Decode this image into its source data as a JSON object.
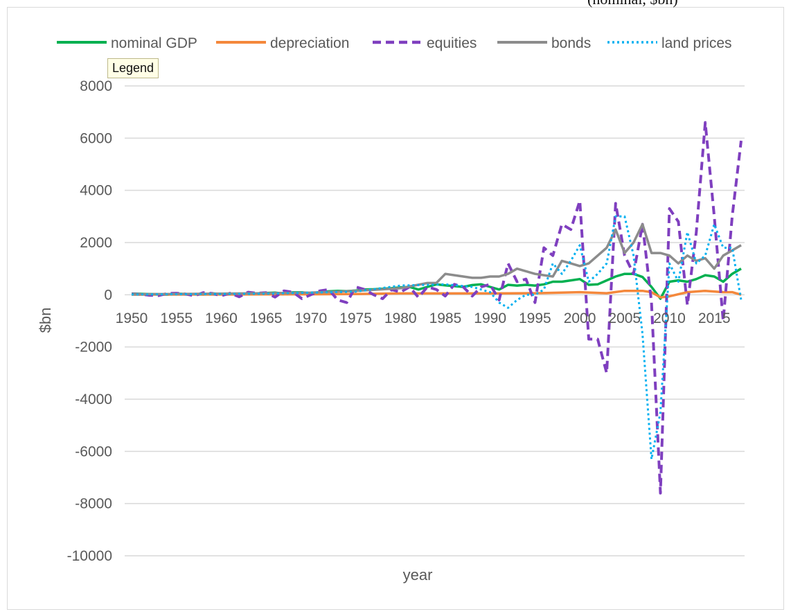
{
  "top_caption": "(nominal, $bn)",
  "tooltip": "Legend",
  "chart_data": {
    "type": "line",
    "title": "",
    "xlabel": "year",
    "ylabel": "$bn",
    "ylim": [
      -10000,
      8000
    ],
    "yticks": [
      8000,
      6000,
      4000,
      2000,
      0,
      -2000,
      -4000,
      -6000,
      -8000,
      -10000
    ],
    "xlim": [
      1950,
      2018
    ],
    "xticks": [
      1950,
      1955,
      1960,
      1965,
      1970,
      1975,
      1980,
      1985,
      1990,
      1995,
      2000,
      2005,
      2010,
      2015
    ],
    "grid": "horizontal",
    "legend_position": "top",
    "series": [
      {
        "name": "nominal GDP",
        "color": "#00b050",
        "dash": "solid",
        "x": [
          1950,
          1951,
          1952,
          1953,
          1954,
          1955,
          1956,
          1957,
          1958,
          1959,
          1960,
          1961,
          1962,
          1963,
          1964,
          1965,
          1966,
          1967,
          1968,
          1969,
          1970,
          1971,
          1972,
          1973,
          1974,
          1975,
          1976,
          1977,
          1978,
          1979,
          1980,
          1981,
          1982,
          1983,
          1984,
          1985,
          1986,
          1987,
          1988,
          1989,
          1990,
          1991,
          1992,
          1993,
          1994,
          1995,
          1996,
          1997,
          1998,
          1999,
          2000,
          2001,
          2002,
          2003,
          2004,
          2005,
          2006,
          2007,
          2008,
          2009,
          2010,
          2011,
          2012,
          2013,
          2014,
          2015,
          2016,
          2017,
          2018
        ],
        "values": [
          40,
          35,
          25,
          20,
          5,
          40,
          30,
          30,
          10,
          50,
          25,
          25,
          40,
          40,
          50,
          70,
          80,
          45,
          90,
          90,
          60,
          100,
          130,
          150,
          140,
          160,
          200,
          210,
          230,
          250,
          280,
          300,
          200,
          300,
          400,
          360,
          330,
          300,
          370,
          400,
          300,
          200,
          380,
          350,
          380,
          350,
          400,
          500,
          500,
          550,
          600,
          380,
          400,
          550,
          700,
          800,
          800,
          680,
          300,
          -150,
          500,
          550,
          500,
          600,
          750,
          700,
          500,
          800,
          1000
        ]
      },
      {
        "name": "depreciation",
        "color": "#f4883c",
        "dash": "solid",
        "x": [
          1950,
          1955,
          1960,
          1965,
          1970,
          1975,
          1980,
          1985,
          1990,
          1995,
          2000,
          2003,
          2005,
          2007,
          2008,
          2009,
          2010,
          2012,
          2014,
          2016,
          2017,
          2018
        ],
        "values": [
          5,
          10,
          10,
          15,
          20,
          30,
          50,
          50,
          50,
          60,
          100,
          60,
          150,
          150,
          100,
          -100,
          -60,
          100,
          150,
          100,
          100,
          0
        ]
      },
      {
        "name": "equities",
        "color": "#7f3fbf",
        "dash": "dashed",
        "x": [
          1950,
          1951,
          1952,
          1953,
          1954,
          1955,
          1956,
          1957,
          1958,
          1959,
          1960,
          1961,
          1962,
          1963,
          1964,
          1965,
          1966,
          1967,
          1968,
          1969,
          1970,
          1971,
          1972,
          1973,
          1974,
          1975,
          1976,
          1977,
          1978,
          1979,
          1980,
          1981,
          1982,
          1983,
          1984,
          1985,
          1986,
          1987,
          1988,
          1989,
          1990,
          1991,
          1992,
          1993,
          1994,
          1995,
          1996,
          1997,
          1998,
          1999,
          2000,
          2001,
          2002,
          2003,
          2004,
          2005,
          2006,
          2007,
          2008,
          2009,
          2010,
          2011,
          2012,
          2013,
          2014,
          2015,
          2016,
          2017,
          2018
        ],
        "values": [
          30,
          20,
          -20,
          -30,
          50,
          60,
          30,
          -40,
          80,
          50,
          -40,
          60,
          -80,
          100,
          60,
          80,
          -90,
          150,
          100,
          -150,
          0,
          150,
          200,
          -200,
          -300,
          300,
          200,
          0,
          -150,
          200,
          100,
          300,
          -100,
          300,
          200,
          -50,
          400,
          300,
          -50,
          300,
          400,
          -200,
          1200,
          500,
          600,
          -300,
          1800,
          1500,
          2700,
          2500,
          3600,
          -1700,
          -1700,
          -3000,
          3500,
          1500,
          800,
          2700,
          -300,
          -7600,
          3300,
          2800,
          -400,
          2400,
          6600,
          3000,
          -1000,
          3000,
          5900
        ]
      },
      {
        "name": "bonds",
        "color": "#8c8c8c",
        "dash": "solid",
        "x": [
          1950,
          1955,
          1960,
          1965,
          1970,
          1975,
          1980,
          1983,
          1984,
          1985,
          1986,
          1987,
          1988,
          1989,
          1990,
          1991,
          1992,
          1993,
          1994,
          1995,
          1996,
          1997,
          1998,
          1999,
          2000,
          2001,
          2002,
          2003,
          2004,
          2005,
          2006,
          2007,
          2008,
          2009,
          2010,
          2011,
          2012,
          2013,
          2014,
          2015,
          2016,
          2017,
          2018
        ],
        "values": [
          20,
          30,
          40,
          60,
          80,
          150,
          250,
          450,
          450,
          800,
          750,
          700,
          650,
          650,
          700,
          700,
          800,
          1000,
          900,
          800,
          750,
          700,
          1300,
          1200,
          1100,
          1200,
          1500,
          1800,
          2500,
          1600,
          2000,
          2700,
          1600,
          1600,
          1500,
          1200,
          1500,
          1300,
          1400,
          1000,
          1500,
          1700,
          1900
        ]
      },
      {
        "name": "land prices",
        "color": "#00b0f0",
        "dash": "dotted",
        "x": [
          1950,
          1955,
          1960,
          1965,
          1970,
          1975,
          1980,
          1985,
          1988,
          1990,
          1991,
          1992,
          1993,
          1994,
          1995,
          1996,
          1997,
          1998,
          1999,
          2000,
          2001,
          2002,
          2003,
          2004,
          2005,
          2006,
          2007,
          2008,
          2009,
          2010,
          2011,
          2012,
          2013,
          2014,
          2015,
          2016,
          2017,
          2018
        ],
        "values": [
          10,
          20,
          30,
          40,
          80,
          120,
          350,
          400,
          300,
          100,
          -300,
          -500,
          -200,
          0,
          0,
          200,
          1200,
          800,
          1300,
          1900,
          500,
          800,
          1200,
          3000,
          3000,
          1500,
          -1500,
          -6300,
          -4500,
          1200,
          500,
          2400,
          1200,
          1500,
          2700,
          1800,
          1800,
          -200
        ]
      }
    ]
  }
}
